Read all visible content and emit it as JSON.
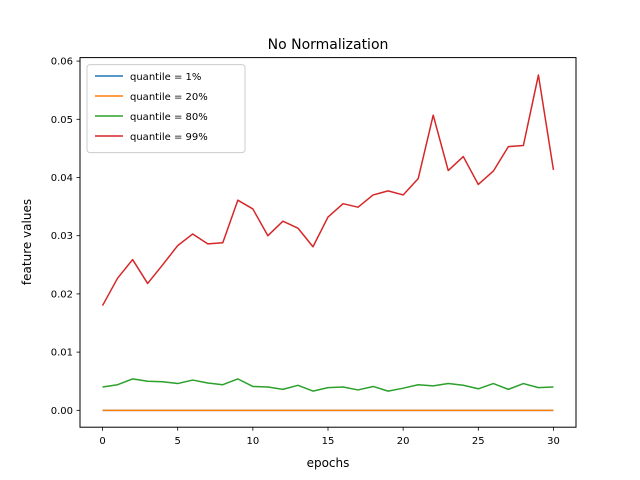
{
  "chart_data": {
    "type": "line",
    "title": "No Normalization",
    "xlabel": "epochs",
    "ylabel": "feature values",
    "xlim": [
      -1.5,
      31.5
    ],
    "ylim": [
      -0.0029,
      0.0606
    ],
    "xticks": [
      0,
      5,
      10,
      15,
      20,
      25,
      30
    ],
    "xtick_labels": [
      "0",
      "5",
      "10",
      "15",
      "20",
      "25",
      "30"
    ],
    "yticks": [
      0.0,
      0.01,
      0.02,
      0.03,
      0.04,
      0.05,
      0.06
    ],
    "ytick_labels": [
      "0.00",
      "0.01",
      "0.02",
      "0.03",
      "0.04",
      "0.05",
      "0.06"
    ],
    "grid": false,
    "legend_position": "upper-left",
    "x": [
      0,
      1,
      2,
      3,
      4,
      5,
      6,
      7,
      8,
      9,
      10,
      11,
      12,
      13,
      14,
      15,
      16,
      17,
      18,
      19,
      20,
      21,
      22,
      23,
      24,
      25,
      26,
      27,
      28,
      29,
      30
    ],
    "series": [
      {
        "name": "quantile = 1%",
        "color": "#1f77b4",
        "values": [
          0,
          0,
          0,
          0,
          0,
          0,
          0,
          0,
          0,
          0,
          0,
          0,
          0,
          0,
          0,
          0,
          0,
          0,
          0,
          0,
          0,
          0,
          0,
          0,
          0,
          0,
          0,
          0,
          0,
          0,
          0
        ]
      },
      {
        "name": "quantile = 20%",
        "color": "#ff7f0e",
        "values": [
          0,
          0,
          0,
          0,
          0,
          0,
          0,
          0,
          0,
          0,
          0,
          0,
          0,
          0,
          0,
          0,
          0,
          0,
          0,
          0,
          0,
          0,
          0,
          0,
          0,
          0,
          0,
          0,
          0,
          0,
          0
        ]
      },
      {
        "name": "quantile = 80%",
        "color": "#2ca02c",
        "values": [
          0.004,
          0.0044,
          0.0054,
          0.005,
          0.0049,
          0.0046,
          0.0052,
          0.0047,
          0.0044,
          0.0054,
          0.0041,
          0.004,
          0.0036,
          0.0043,
          0.0033,
          0.0039,
          0.004,
          0.0035,
          0.0041,
          0.0033,
          0.0038,
          0.0044,
          0.0042,
          0.0046,
          0.0043,
          0.0037,
          0.0046,
          0.0036,
          0.0046,
          0.0039,
          0.004
        ]
      },
      {
        "name": "quantile = 99%",
        "color": "#d62728",
        "values": [
          0.018,
          0.0227,
          0.0259,
          0.0218,
          0.025,
          0.0283,
          0.0303,
          0.0286,
          0.0288,
          0.0361,
          0.0346,
          0.03,
          0.0325,
          0.0313,
          0.0281,
          0.0332,
          0.0355,
          0.0349,
          0.037,
          0.0377,
          0.037,
          0.0398,
          0.0507,
          0.0412,
          0.0436,
          0.0388,
          0.0411,
          0.0453,
          0.0455,
          0.0576,
          0.0413
        ]
      }
    ]
  }
}
